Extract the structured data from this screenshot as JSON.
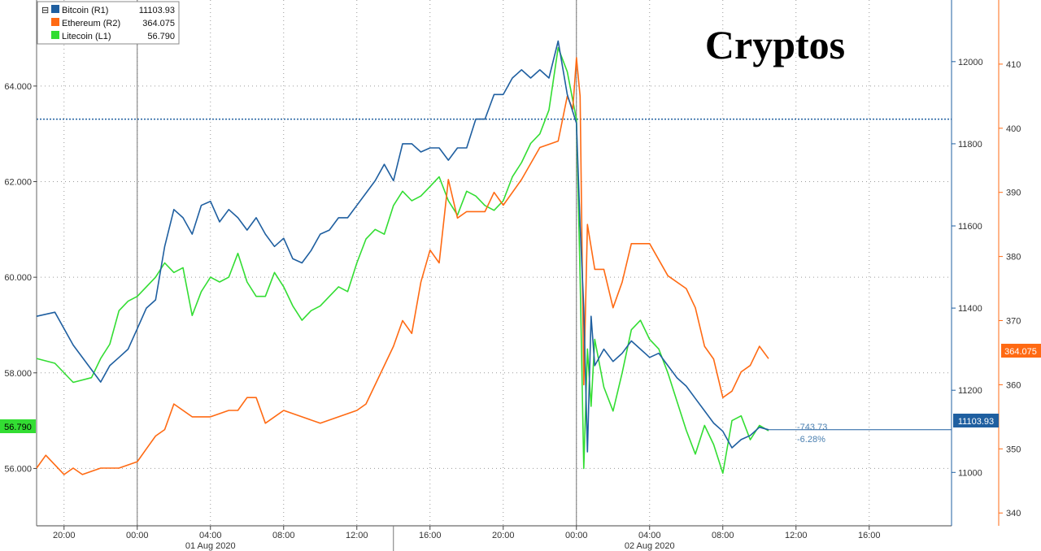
{
  "chart_data": {
    "type": "line",
    "title": "Cryptos",
    "x_ticks": [
      "20:00",
      "00:00",
      "04:00",
      "08:00",
      "12:00",
      "16:00",
      "20:00",
      "00:00",
      "04:00",
      "08:00",
      "12:00",
      "16:00"
    ],
    "date_labels": [
      {
        "label": "01 Aug 2020",
        "at_hour": 4
      },
      {
        "label": "02 Aug 2020",
        "at_hour": 28
      }
    ],
    "x_range_hours": [
      -5.5,
      44.5
    ],
    "axes": {
      "left": {
        "id": "L1",
        "range": [
          54.8,
          65.8
        ],
        "ticks": [
          "56.000",
          "58.000",
          "60.000",
          "62.000",
          "64.000"
        ],
        "tick_values": [
          56,
          58,
          60,
          62,
          64
        ]
      },
      "right1": {
        "id": "R1",
        "range": [
          10870,
          12150
        ],
        "ticks": [
          "11000",
          "11200",
          "11400",
          "11600",
          "11800",
          "12000"
        ],
        "tick_values": [
          11000,
          11200,
          11400,
          11600,
          11800,
          12000
        ]
      },
      "right2": {
        "id": "R2",
        "range": [
          338,
          420
        ],
        "ticks": [
          "340",
          "350",
          "360",
          "370",
          "380",
          "390",
          "400",
          "410"
        ],
        "tick_values": [
          340,
          350,
          360,
          370,
          380,
          390,
          400,
          410
        ]
      }
    },
    "legend": [
      {
        "name": "Bitcoin (R1)",
        "value": "11103.93",
        "color": "#1f5fa0"
      },
      {
        "name": "Ethereum (R2)",
        "value": "364.075",
        "color": "#ff6a13"
      },
      {
        "name": "Litecoin (L1)",
        "value": "56.790",
        "color": "#33dd33"
      }
    ],
    "legend_collapse_symbol": "⊟",
    "last_value_tags": {
      "litecoin": "56.790",
      "bitcoin": "11103.93",
      "ethereum": "364.075"
    },
    "annotation": {
      "change": "-743.73",
      "pct": "-6.28%"
    },
    "reference_line": {
      "axis": "R1",
      "value": 11860
    },
    "series": [
      {
        "name": "Bitcoin",
        "axis": "right1",
        "color": "#1f5fa0",
        "x": [
          -5.5,
          -4.5,
          -3.5,
          -2.5,
          -2,
          -1.5,
          -1,
          -0.5,
          0,
          0.5,
          1,
          1.5,
          2,
          2.5,
          3,
          3.5,
          4,
          4.5,
          5,
          5.5,
          6,
          6.5,
          7,
          7.5,
          8,
          8.5,
          9,
          9.5,
          10,
          10.5,
          11,
          11.5,
          12,
          12.5,
          13,
          13.5,
          14,
          14.5,
          15,
          15.5,
          16,
          16.5,
          17,
          17.5,
          18,
          18.5,
          19,
          19.5,
          20,
          20.5,
          21,
          21.5,
          22,
          22.5,
          23,
          23.5,
          24,
          24.2,
          24.4,
          24.6,
          24.8,
          25,
          25.5,
          26,
          26.5,
          27,
          27.5,
          28,
          28.5,
          29,
          29.5,
          30,
          30.5,
          31,
          31.5,
          32,
          32.5,
          33,
          33.5,
          34,
          34.5
        ],
        "y": [
          11380,
          11390,
          11310,
          11250,
          11220,
          11260,
          11280,
          11300,
          11350,
          11400,
          11420,
          11550,
          11640,
          11620,
          11580,
          11650,
          11660,
          11610,
          11640,
          11620,
          11590,
          11620,
          11580,
          11550,
          11570,
          11520,
          11510,
          11540,
          11580,
          11590,
          11620,
          11620,
          11650,
          11680,
          11710,
          11750,
          11710,
          11800,
          11800,
          11780,
          11790,
          11790,
          11760,
          11790,
          11790,
          11860,
          11860,
          11920,
          11920,
          11960,
          11980,
          11960,
          11980,
          11960,
          12050,
          11920,
          11850,
          11600,
          11400,
          11050,
          11380,
          11260,
          11300,
          11270,
          11290,
          11320,
          11300,
          11280,
          11290,
          11260,
          11230,
          11210,
          11180,
          11150,
          11120,
          11100,
          11060,
          11080,
          11090,
          11110,
          11103.93
        ]
      },
      {
        "name": "Ethereum",
        "axis": "right2",
        "color": "#ff6a13",
        "x": [
          -5.5,
          -5,
          -4,
          -3.5,
          -3,
          -2,
          -1,
          0,
          0.5,
          1,
          1.5,
          2,
          3,
          4,
          5,
          5.5,
          6,
          6.5,
          7,
          8,
          9,
          10,
          11,
          12,
          12.5,
          13,
          14,
          14.5,
          15,
          15.5,
          16,
          16.5,
          17,
          17.5,
          18,
          19,
          19.5,
          20,
          21,
          22,
          23,
          23.5,
          23.8,
          24,
          24.2,
          24.4,
          24.6,
          25,
          25.5,
          26,
          26.5,
          27,
          28,
          29,
          30,
          30.5,
          31,
          31.5,
          32,
          32.5,
          33,
          33.5,
          34,
          34.5
        ],
        "y": [
          347,
          349,
          346,
          347,
          346,
          347,
          347,
          348,
          350,
          352,
          353,
          357,
          355,
          355,
          356,
          356,
          358,
          358,
          354,
          356,
          355,
          354,
          355,
          356,
          357,
          360,
          366,
          370,
          368,
          376,
          381,
          379,
          392,
          386,
          387,
          387,
          390,
          388,
          392,
          397,
          398,
          405,
          403,
          411,
          405,
          360,
          385,
          378,
          378,
          372,
          376,
          382,
          382,
          377,
          375,
          372,
          366,
          364,
          358,
          359,
          362,
          363,
          366,
          364.075
        ]
      },
      {
        "name": "Litecoin",
        "axis": "left",
        "color": "#33dd33",
        "x": [
          -5.5,
          -4.5,
          -3.5,
          -2.5,
          -2,
          -1.5,
          -1,
          -0.5,
          0,
          0.5,
          1,
          1.5,
          2,
          2.5,
          3,
          3.5,
          4,
          4.5,
          5,
          5.5,
          6,
          6.5,
          7,
          7.5,
          8,
          8.5,
          9,
          9.5,
          10,
          10.5,
          11,
          11.5,
          12,
          12.5,
          13,
          13.5,
          14,
          14.5,
          15,
          15.5,
          16,
          16.5,
          17,
          17.5,
          18,
          18.5,
          19,
          19.5,
          20,
          20.5,
          21,
          21.5,
          22,
          22.5,
          23,
          23.5,
          24,
          24.2,
          24.4,
          24.6,
          24.8,
          25,
          25.5,
          26,
          26.5,
          27,
          27.5,
          28,
          28.5,
          29,
          29.5,
          30,
          30.5,
          31,
          31.5,
          32,
          32.5,
          33,
          33.5,
          34,
          34.5
        ],
        "y": [
          58.3,
          58.2,
          57.8,
          57.9,
          58.3,
          58.6,
          59.3,
          59.5,
          59.6,
          59.8,
          60.0,
          60.3,
          60.1,
          60.2,
          59.2,
          59.7,
          60.0,
          59.9,
          60.0,
          60.5,
          59.9,
          59.6,
          59.6,
          60.1,
          59.8,
          59.4,
          59.1,
          59.3,
          59.4,
          59.6,
          59.8,
          59.7,
          60.3,
          60.8,
          61.0,
          60.9,
          61.5,
          61.8,
          61.6,
          61.7,
          61.9,
          62.1,
          61.6,
          61.3,
          61.8,
          61.7,
          61.5,
          61.4,
          61.6,
          62.1,
          62.4,
          62.8,
          63.0,
          63.5,
          64.8,
          64.3,
          63.3,
          60.0,
          56.0,
          58.5,
          57.3,
          58.7,
          57.7,
          57.2,
          58.0,
          58.9,
          59.1,
          58.7,
          58.5,
          58.0,
          57.4,
          56.8,
          56.3,
          56.9,
          56.5,
          55.9,
          57.0,
          57.1,
          56.6,
          56.9,
          56.79
        ]
      }
    ]
  }
}
